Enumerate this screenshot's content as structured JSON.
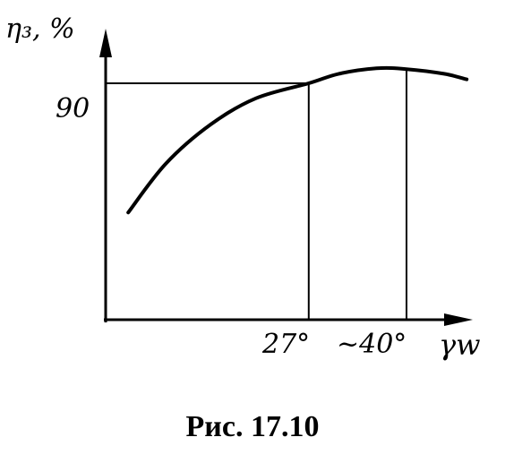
{
  "caption": "Рис. 17.10",
  "chart_data": {
    "type": "line",
    "ylabel": "η₃, %",
    "xlabel": "γw",
    "ytick_label": "90",
    "xtick_labels": [
      "27°",
      "~40°"
    ],
    "xlim": [
      0,
      50
    ],
    "ylim": [
      60,
      100
    ],
    "series": [
      {
        "x": [
          3,
          8,
          14,
          20,
          27,
          31,
          36,
          40,
          45,
          48
        ],
        "y": [
          73.6,
          79.8,
          84.8,
          88.1,
          90,
          91.2,
          91.9,
          91.8,
          91.2,
          90.5
        ]
      }
    ],
    "guides": {
      "y": 90,
      "x": [
        27,
        40
      ]
    }
  }
}
